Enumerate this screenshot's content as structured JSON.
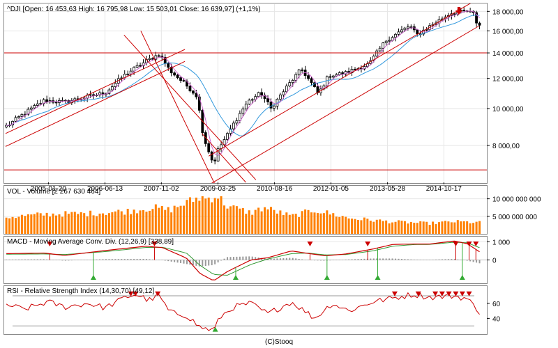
{
  "footer": "(C)Stooq",
  "colors": {
    "candle": "#000000",
    "ma_short": "#cc66cc",
    "ma_long": "#3399dd",
    "trend": "#cc0000",
    "volume": "#ff8000",
    "macd": "#cc0000",
    "signal": "#339933",
    "histogram": "#999999",
    "rsi": "#cc0000",
    "sell_marker": "#cc0000",
    "buy_marker": "#33aa33"
  },
  "chart_data": [
    {
      "type": "candlestick",
      "title": "^DJI [Open: 16 453,63  High: 16 795,98  Low: 15 503,01  Close: 16 639,97] (+1,1%)",
      "x_tick_labels": [
        "2005-01-20",
        "2006-06-13",
        "2007-11-02",
        "2009-03-25",
        "2010-08-16",
        "2012-01-05",
        "2013-05-28",
        "2014-10-17"
      ],
      "y_tick_labels": [
        "8 000,00",
        "10 000,00",
        "12 000,00",
        "14 000,00",
        "16 000,00",
        "18 000,00"
      ],
      "y_ticks": [
        8000,
        10000,
        12000,
        14000,
        16000,
        18000
      ],
      "ylim": [
        6400,
        18800
      ],
      "scale": "log",
      "x_range": [
        "2004-01-01",
        "2015-10-01"
      ],
      "monthly_close_anchors": [
        [
          "2004-01",
          9000
        ],
        [
          "2004-06",
          9700
        ],
        [
          "2004-12",
          10500
        ],
        [
          "2005-06",
          10400
        ],
        [
          "2005-12",
          10700
        ],
        [
          "2006-06",
          11000
        ],
        [
          "2006-12",
          12300
        ],
        [
          "2007-06",
          13300
        ],
        [
          "2007-10",
          13900
        ],
        [
          "2008-01",
          12600
        ],
        [
          "2008-06",
          11500
        ],
        [
          "2008-09",
          10800
        ],
        [
          "2008-11",
          8400
        ],
        [
          "2009-02",
          7100
        ],
        [
          "2009-03",
          7700
        ],
        [
          "2009-06",
          8500
        ],
        [
          "2009-12",
          10400
        ],
        [
          "2010-04",
          11000
        ],
        [
          "2010-07",
          10000
        ],
        [
          "2010-12",
          11500
        ],
        [
          "2011-04",
          12700
        ],
        [
          "2011-09",
          10900
        ],
        [
          "2011-12",
          12200
        ],
        [
          "2012-05",
          12400
        ],
        [
          "2012-12",
          13100
        ],
        [
          "2013-05",
          15100
        ],
        [
          "2013-12",
          16500
        ],
        [
          "2014-02",
          15600
        ],
        [
          "2014-12",
          17800
        ],
        [
          "2015-05",
          18000
        ],
        [
          "2015-07",
          17700
        ],
        [
          "2015-08",
          16500
        ],
        [
          "2015-09",
          16600
        ]
      ],
      "horizontal_lines": [
        14000,
        6900
      ],
      "trend_lines": [
        {
          "from": [
            "2004-01-01",
            8600
          ],
          "to": [
            "2008-06-01",
            14300
          ]
        },
        {
          "from": [
            "2004-01-01",
            7950
          ],
          "to": [
            "2008-06-01",
            13300
          ]
        },
        {
          "from": [
            "2007-05-01",
            16000
          ],
          "to": [
            "2009-03-01",
            6300
          ]
        },
        {
          "from": [
            "2006-12-01",
            15600
          ],
          "to": [
            "2010-03-01",
            6500
          ]
        },
        {
          "from": [
            "2009-01-01",
            7500
          ],
          "to": [
            "2015-09-01",
            19500
          ]
        },
        {
          "from": [
            "2009-01-01",
            6300
          ],
          "to": [
            "2015-09-01",
            16500
          ]
        },
        {
          "from": [
            "2008-11-01",
            8600
          ],
          "to": [
            "2009-12-01",
            6400
          ]
        }
      ],
      "marker_top": "2015-03-01"
    },
    {
      "type": "bar",
      "title": "VOL - Volume [2 267 630 464]",
      "y_tick_labels": [
        "5 000 000 000",
        "10 000 000 000"
      ],
      "y_ticks": [
        5000000000,
        10000000000
      ],
      "ylim": [
        0,
        13500000000
      ],
      "monthly_volume_anchors": [
        [
          "2004-01",
          4800000000
        ],
        [
          "2005-01",
          5600000000
        ],
        [
          "2006-01",
          5800000000
        ],
        [
          "2007-01",
          6500000000
        ],
        [
          "2007-08",
          7500000000
        ],
        [
          "2008-01",
          6800000000
        ],
        [
          "2008-10",
          10500000000
        ],
        [
          "2008-12",
          10000000000
        ],
        [
          "2009-03",
          11000000000
        ],
        [
          "2009-06",
          8000000000
        ],
        [
          "2010-01",
          6000000000
        ],
        [
          "2010-05",
          7500000000
        ],
        [
          "2011-01",
          5000000000
        ],
        [
          "2011-08",
          6800000000
        ],
        [
          "2012-06",
          4500000000
        ],
        [
          "2013-06",
          3500000000
        ],
        [
          "2014-06",
          3000000000
        ],
        [
          "2015-01",
          3500000000
        ],
        [
          "2015-09",
          3200000000
        ]
      ]
    },
    {
      "type": "line",
      "title": "MACD - Moving Average Conv. Div. (12,26,9) [338,89]",
      "y_tick_labels": [
        "0",
        "1 000"
      ],
      "y_ticks": [
        0,
        1000
      ],
      "ylim": [
        -1250,
        1250
      ],
      "macd_anchors": [
        [
          "2004-01",
          350
        ],
        [
          "2004-12",
          380
        ],
        [
          "2005-06",
          250
        ],
        [
          "2006-06",
          520
        ],
        [
          "2007-06",
          760
        ],
        [
          "2007-11",
          680
        ],
        [
          "2008-06",
          100
        ],
        [
          "2008-10",
          -750
        ],
        [
          "2009-02",
          -1150
        ],
        [
          "2009-06",
          -650
        ],
        [
          "2010-01",
          0
        ],
        [
          "2010-06",
          120
        ],
        [
          "2011-01",
          500
        ],
        [
          "2011-06",
          360
        ],
        [
          "2011-11",
          230
        ],
        [
          "2012-05",
          330
        ],
        [
          "2013-01",
          600
        ],
        [
          "2013-07",
          860
        ],
        [
          "2014-01",
          880
        ],
        [
          "2014-06",
          880
        ],
        [
          "2015-01",
          1050
        ],
        [
          "2015-05",
          900
        ],
        [
          "2015-09",
          400
        ]
      ],
      "signal_anchors": [
        [
          "2004-01",
          320
        ],
        [
          "2004-12",
          330
        ],
        [
          "2005-06",
          300
        ],
        [
          "2006-06",
          460
        ],
        [
          "2007-06",
          690
        ],
        [
          "2007-11",
          700
        ],
        [
          "2008-06",
          380
        ],
        [
          "2008-10",
          -300
        ],
        [
          "2009-02",
          -800
        ],
        [
          "2009-06",
          -850
        ],
        [
          "2010-01",
          -250
        ],
        [
          "2010-06",
          50
        ],
        [
          "2011-01",
          350
        ],
        [
          "2011-06",
          380
        ],
        [
          "2011-11",
          280
        ],
        [
          "2012-05",
          300
        ],
        [
          "2013-01",
          500
        ],
        [
          "2013-07",
          760
        ],
        [
          "2014-01",
          850
        ],
        [
          "2014-06",
          860
        ],
        [
          "2015-01",
          980
        ],
        [
          "2015-05",
          950
        ],
        [
          "2015-09",
          650
        ]
      ],
      "sell_markers": [
        "2005-02-01",
        "2007-09-01",
        "2011-07-01",
        "2012-12-01",
        "2015-02-01",
        "2015-06-01",
        "2015-08-01"
      ],
      "buy_markers": [
        "2006-03-01",
        "2009-09-01",
        "2011-12-01",
        "2013-03-01",
        "2015-04-01"
      ]
    },
    {
      "type": "line",
      "title": "RSI - Relative Strength Index (14,30,70) [49,12]",
      "y_tick_labels": [
        "40",
        "60"
      ],
      "y_ticks": [
        40,
        60
      ],
      "ylim": [
        20,
        82
      ],
      "reference_lines": [
        30,
        70
      ],
      "rsi_anchors": [
        [
          "2004-01",
          58
        ],
        [
          "2004-06",
          52
        ],
        [
          "2005-01",
          62
        ],
        [
          "2005-06",
          55
        ],
        [
          "2006-01",
          60
        ],
        [
          "2006-06",
          54
        ],
        [
          "2006-12",
          68
        ],
        [
          "2007-03",
          72
        ],
        [
          "2007-07",
          64
        ],
        [
          "2007-10",
          70
        ],
        [
          "2008-01",
          48
        ],
        [
          "2008-06",
          44
        ],
        [
          "2008-10",
          28
        ],
        [
          "2009-02",
          24
        ],
        [
          "2009-04",
          42
        ],
        [
          "2009-08",
          55
        ],
        [
          "2010-01",
          60
        ],
        [
          "2010-06",
          46
        ],
        [
          "2011-01",
          62
        ],
        [
          "2011-08",
          40
        ],
        [
          "2012-01",
          60
        ],
        [
          "2012-06",
          50
        ],
        [
          "2013-01",
          62
        ],
        [
          "2013-06",
          66
        ],
        [
          "2014-01",
          72
        ],
        [
          "2014-06",
          68
        ],
        [
          "2015-01",
          70
        ],
        [
          "2015-05",
          66
        ],
        [
          "2015-09",
          47
        ]
      ],
      "overbought_markers": [
        "2007-02-01",
        "2007-03-15",
        "2007-10-01",
        "2013-08-01",
        "2014-03-01",
        "2014-08-01",
        "2014-10-01",
        "2014-12-01",
        "2015-02-01",
        "2015-04-01",
        "2015-06-01"
      ],
      "oversold_markers": [
        "2009-03-01"
      ]
    }
  ]
}
